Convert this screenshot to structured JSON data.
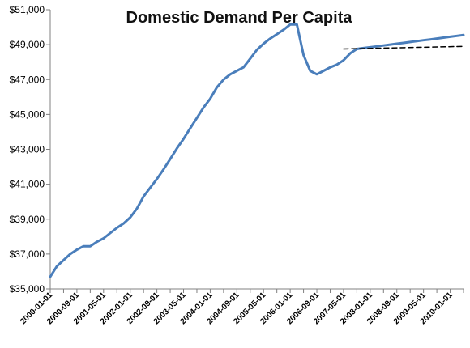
{
  "chart_data": {
    "type": "line",
    "title": "Domestic Demand Per Capita",
    "xlabel": "",
    "ylabel": "",
    "ylim": [
      35000,
      51000
    ],
    "yticks": [
      35000,
      37000,
      39000,
      41000,
      43000,
      45000,
      47000,
      49000,
      51000
    ],
    "ytick_labels": [
      "$35,000",
      "$37,000",
      "$39,000",
      "$41,000",
      "$43,000",
      "$45,000",
      "$47,000",
      "$49,000",
      "$51,000"
    ],
    "xtick_labels": [
      "2000-01-01",
      "2000-09-01",
      "2001-05-01",
      "2002-01-01",
      "2002-09-01",
      "2003-05-01",
      "2004-01-01",
      "2004-09-01",
      "2005-05-01",
      "2006-01-01",
      "2006-09-01",
      "2007-05-01",
      "2008-01-01",
      "2008-09-01",
      "2009-05-01",
      "2010-01-01"
    ],
    "grid": false,
    "legend": "none",
    "series": [
      {
        "color": "#4a7ebb",
        "style": "solid",
        "x": [
          "2000-01-01",
          "2000-03-01",
          "2000-05-01",
          "2000-07-01",
          "2000-09-01",
          "2000-11-01",
          "2001-01-01",
          "2001-03-01",
          "2001-05-01",
          "2001-07-01",
          "2001-09-01",
          "2001-11-01",
          "2002-01-01",
          "2002-03-01",
          "2002-05-01",
          "2002-07-01",
          "2002-09-01",
          "2002-11-01",
          "2003-01-01",
          "2003-03-01",
          "2003-05-01",
          "2003-07-01",
          "2003-09-01",
          "2003-11-01",
          "2004-01-01",
          "2004-03-01",
          "2004-05-01",
          "2004-07-01",
          "2004-09-01",
          "2004-11-01",
          "2005-01-01",
          "2005-03-01",
          "2005-05-01",
          "2005-07-01",
          "2005-09-01",
          "2005-11-01",
          "2006-01-01",
          "2006-03-01",
          "2006-05-01",
          "2006-07-01",
          "2006-09-01",
          "2006-11-01",
          "2007-01-01",
          "2007-03-01",
          "2007-05-01",
          "2007-07-01",
          "2007-09-01",
          "2007-11-01",
          "2008-01-01",
          "2008-03-01",
          "2008-05-01",
          "2008-07-01",
          "2008-09-01",
          "2008-11-01",
          "2009-01-01",
          "2009-03-01",
          "2009-05-01",
          "2009-07-01",
          "2009-09-01",
          "2009-11-01",
          "2010-01-01",
          "2010-03-01",
          "2010-05-01"
        ],
        "y": [
          35700,
          36300,
          36650,
          37000,
          37250,
          37450,
          37450,
          37700,
          37900,
          38200,
          38500,
          38750,
          39100,
          39600,
          40300,
          40800,
          41300,
          41850,
          42450,
          43050,
          43600,
          44200,
          44800,
          45400,
          45900,
          46550,
          47000,
          47300,
          47500,
          47700,
          48200,
          48700,
          49050,
          49350,
          49600,
          49850,
          50150,
          50150,
          48400,
          47500,
          47300,
          47500,
          47700,
          47850,
          48100,
          48500,
          48750,
          48800,
          48850,
          48900,
          48950,
          49000,
          49050,
          49100,
          49150,
          49200,
          49250,
          49300,
          49350,
          49400,
          49450,
          49500,
          49550
        ]
      },
      {
        "color": "#000000",
        "style": "dashed",
        "x": [
          "2007-05-01",
          "2010-05-01"
        ],
        "y": [
          48750,
          48900
        ]
      }
    ]
  }
}
